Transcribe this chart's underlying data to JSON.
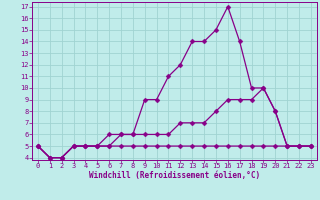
{
  "xlabel": "Windchill (Refroidissement éolien,°C)",
  "bg_color": "#c0ecea",
  "grid_color": "#a0d4d2",
  "line_color": "#880088",
  "spine_color": "#880088",
  "x_values": [
    0,
    1,
    2,
    3,
    4,
    5,
    6,
    7,
    8,
    9,
    10,
    11,
    12,
    13,
    14,
    15,
    16,
    17,
    18,
    19,
    20,
    21,
    22,
    23
  ],
  "line1_y": [
    5,
    4,
    4,
    5,
    5,
    5,
    6,
    6,
    6,
    9,
    9,
    11,
    12,
    14,
    14,
    15,
    17,
    14,
    10,
    10,
    8,
    5,
    5,
    5
  ],
  "line2_y": [
    5,
    4,
    4,
    5,
    5,
    5,
    5,
    6,
    6,
    6,
    6,
    6,
    7,
    7,
    7,
    8,
    9,
    9,
    9,
    10,
    8,
    5,
    5,
    5
  ],
  "line3_y": [
    5,
    4,
    4,
    5,
    5,
    5,
    5,
    5,
    5,
    5,
    5,
    5,
    5,
    5,
    5,
    5,
    5,
    5,
    5,
    5,
    5,
    5,
    5,
    5
  ],
  "ylim": [
    3.8,
    17.4
  ],
  "xlim": [
    -0.5,
    23.5
  ],
  "yticks": [
    4,
    5,
    6,
    7,
    8,
    9,
    10,
    11,
    12,
    13,
    14,
    15,
    16,
    17
  ],
  "xticks": [
    0,
    1,
    2,
    3,
    4,
    5,
    6,
    7,
    8,
    9,
    10,
    11,
    12,
    13,
    14,
    15,
    16,
    17,
    18,
    19,
    20,
    21,
    22,
    23
  ],
  "tick_fontsize": 5.0,
  "xlabel_fontsize": 5.5,
  "marker_size": 2.5,
  "line_width": 0.9
}
